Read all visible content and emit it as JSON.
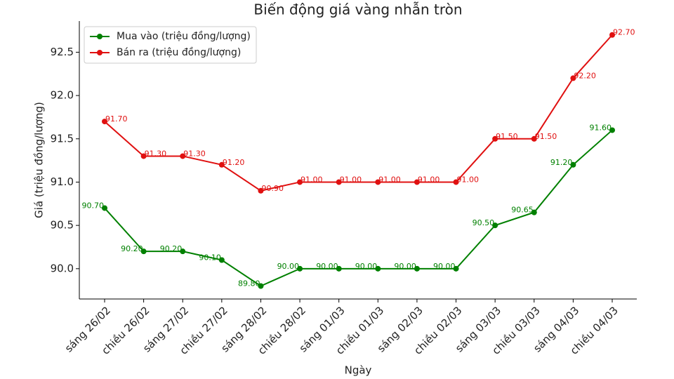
{
  "chart_data": {
    "type": "line",
    "title": "Biến động giá vàng nhẫn tròn",
    "x_label": "Ngày",
    "y_label": "Giá (triệu đồng/lượng)",
    "categories": [
      "sáng 26/02",
      "chiều 26/02",
      "sáng 27/02",
      "chiều 27/02",
      "sáng 28/02",
      "chiều 28/02",
      "sáng 01/03",
      "chiều 01/03",
      "sáng 02/03",
      "chiều 02/03",
      "sáng 03/03",
      "chiều 03/03",
      "sáng 04/03",
      "chiều 04/03"
    ],
    "series": [
      {
        "name": "Mua vào (triệu đồng/lượng)",
        "color": "#008000",
        "values": [
          90.7,
          90.2,
          90.2,
          90.1,
          89.8,
          90,
          90,
          90,
          90,
          90,
          90.5,
          90.65,
          91.2,
          91.6
        ],
        "value_labels": [
          "90.70",
          "90.20",
          "90.20",
          "90.10",
          "89.80",
          "90.00",
          "90.00",
          "90.00",
          "90.00",
          "90.00",
          "90.50",
          "90.65",
          "91.20",
          "91.60"
        ]
      },
      {
        "name": "Bán ra (triệu đồng/lượng)",
        "color": "#e01010",
        "values": [
          91.7,
          91.3,
          91.3,
          91.2,
          90.9,
          91,
          91,
          91,
          91,
          91,
          91.5,
          91.5,
          92.2,
          92.7
        ],
        "value_labels": [
          "91.70",
          "91.30",
          "91.30",
          "91.20",
          "90.90",
          "91.00",
          "91.00",
          "91.00",
          "91.00",
          "91.00",
          "91.50",
          "91.50",
          "92.20",
          "92.70"
        ]
      }
    ],
    "ylim": [
      89.65,
      92.86
    ],
    "yticks": [
      {
        "value": 90,
        "label": "90.0"
      },
      90.5,
      {
        "value": 91,
        "label": "91.0"
      },
      91.5,
      {
        "value": 92,
        "label": "92.0"
      },
      92.5
    ],
    "legend": "upper left",
    "grid": false
  }
}
